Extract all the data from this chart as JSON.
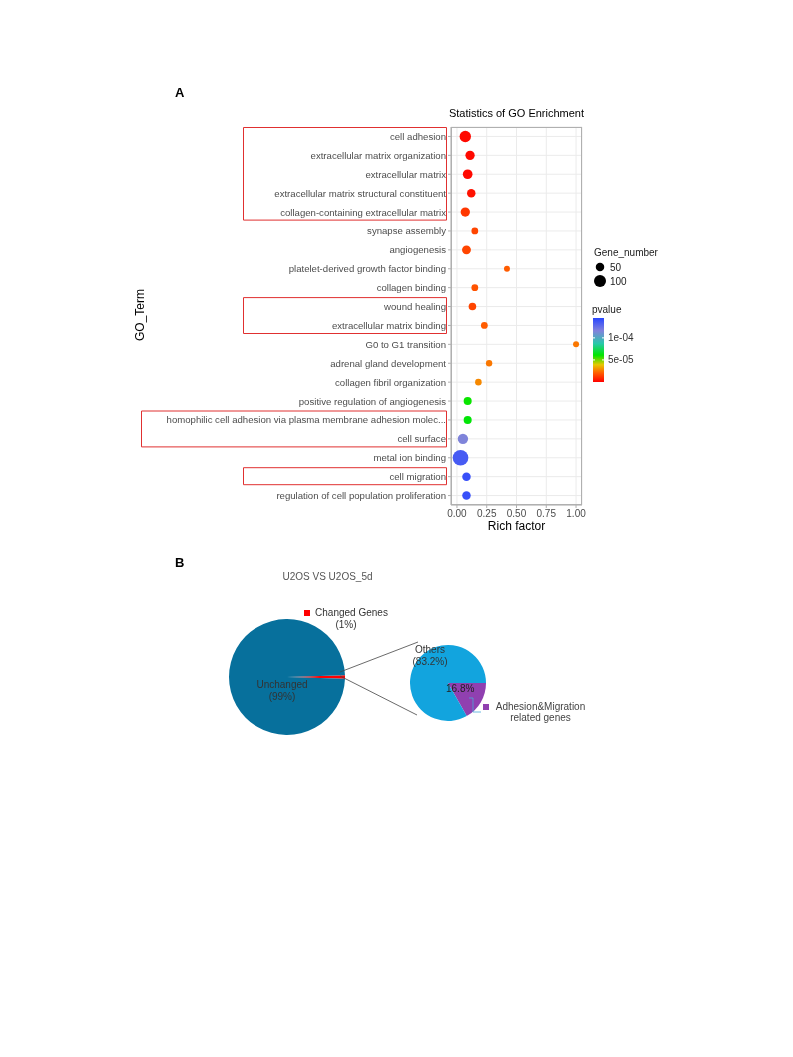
{
  "chart_data": [
    {
      "type": "bubble",
      "orientation": "horizontal",
      "title": "Statistics of GO Enrichment",
      "xlabel": "Rich factor",
      "ylabel": "GO_Term",
      "legend_title": "Gene_number",
      "clabel": "pvalue",
      "annotations": [
        "A"
      ],
      "categories": [
        "cell adhesion",
        "extracellular matrix organization",
        "extracellular matrix",
        "extracellular matrix structural constituent",
        "collagen-containing extracellular matrix",
        "synapse assembly",
        "angiogenesis",
        "platelet-derived growth factor binding",
        "collagen binding",
        "wound healing",
        "extracellular matrix binding",
        "G0 to G1 transition",
        "adrenal gland development",
        "collagen fibril organization",
        "positive regulation of angiogenesis",
        "homophilic cell adhesion via plasma membrane adhesion molec...",
        "cell surface",
        "metal ion binding",
        "cell migration",
        "regulation of cell population proliferation"
      ],
      "values": [
        0.07,
        0.11,
        0.09,
        0.12,
        0.07,
        0.15,
        0.08,
        0.42,
        0.15,
        0.13,
        0.23,
        1.0,
        0.27,
        0.18,
        0.09,
        0.09,
        0.05,
        0.03,
        0.08,
        0.08
      ],
      "sizes": [
        90,
        60,
        65,
        50,
        60,
        32,
        55,
        25,
        32,
        40,
        32,
        25,
        28,
        30,
        45,
        45,
        75,
        170,
        50,
        50
      ],
      "size_legend": [
        50,
        100
      ],
      "cvalues": [
        2e-06,
        2e-06,
        2e-06,
        4e-06,
        1.2e-05,
        1.5e-05,
        1.5e-05,
        2e-05,
        1.8e-05,
        1.5e-05,
        2e-05,
        2.5e-05,
        2.5e-05,
        2.8e-05,
        6e-05,
        6.2e-05,
        0.000115,
        0.000135,
        0.00014,
        0.00014
      ],
      "clim": [
        0,
        0.000145
      ],
      "cticks": [
        {
          "value": 0.0001,
          "label": "1e-04"
        },
        {
          "value": 5e-05,
          "label": "5e-05"
        }
      ],
      "xlim": [
        -0.05,
        1.05
      ],
      "xticks": [
        {
          "value": 0,
          "label": "0.00"
        },
        {
          "value": 0.25,
          "label": "0.25"
        },
        {
          "value": 0.5,
          "label": "0.50"
        },
        {
          "value": 0.75,
          "label": "0.75"
        },
        {
          "value": 1,
          "label": "1.00"
        }
      ],
      "grid": true,
      "marker": "circle"
    },
    {
      "type": "pie",
      "title": "U2OS VS U2OS_5d",
      "annotations": [
        "B"
      ],
      "categories": [
        "Changed Genes",
        "Unchanged"
      ],
      "values": [
        1,
        99
      ],
      "colors": [
        "#ff0000",
        "#07709c"
      ],
      "value_labels": [
        "(1%)",
        "(99%)"
      ],
      "legend": "top right"
    },
    {
      "type": "pie",
      "categories": [
        "Adhesion&Migration related genes",
        "Others"
      ],
      "values": [
        16.8,
        83.2
      ],
      "colors": [
        "#9040b0",
        "#12a4de"
      ],
      "value_labels": [
        "16.8%",
        "(83.2%)"
      ],
      "legend": "bottom right"
    }
  ]
}
